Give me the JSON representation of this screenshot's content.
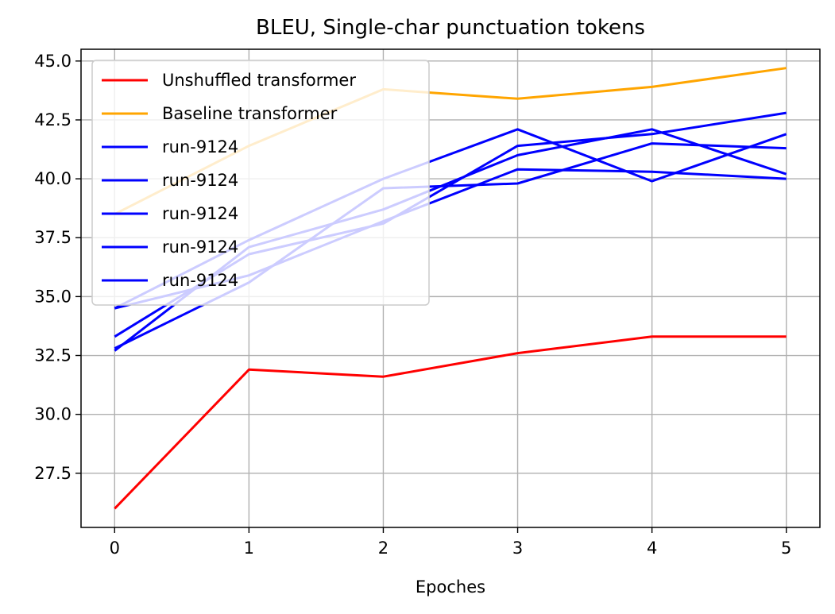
{
  "chart_data": {
    "type": "line",
    "title": "BLEU, Single-char punctuation tokens",
    "xlabel": "Epoches",
    "ylabel": "",
    "x": [
      0,
      1,
      2,
      3,
      4,
      5
    ],
    "xticks": [
      "0",
      "1",
      "2",
      "3",
      "4",
      "5"
    ],
    "yticks": [
      "27.5",
      "30.0",
      "32.5",
      "35.0",
      "37.5",
      "40.0",
      "42.5",
      "45.0"
    ],
    "xlim": [
      -0.25,
      5.25
    ],
    "ylim": [
      25.2,
      45.5
    ],
    "grid": true,
    "legend_position": "upper-left",
    "series": [
      {
        "name": "Unshuffled transformer",
        "color": "#ff0000",
        "values": [
          26.0,
          31.9,
          31.6,
          32.6,
          33.3,
          33.3
        ]
      },
      {
        "name": "Baseline transformer",
        "color": "#ffa500",
        "values": [
          38.5,
          41.4,
          43.8,
          43.4,
          43.9,
          44.7
        ]
      },
      {
        "name": "run-9124",
        "color": "#0000ff",
        "values": [
          34.5,
          37.4,
          40.0,
          42.1,
          39.9,
          41.9
        ]
      },
      {
        "name": "run-9124",
        "color": "#0000ff",
        "values": [
          33.3,
          36.8,
          38.1,
          41.4,
          41.9,
          42.8
        ]
      },
      {
        "name": "run-9124",
        "color": "#0000ff",
        "values": [
          32.8,
          35.6,
          39.6,
          39.8,
          41.5,
          41.3
        ]
      },
      {
        "name": "run-9124",
        "color": "#0000ff",
        "values": [
          34.5,
          35.9,
          38.2,
          40.4,
          40.3,
          40.0
        ]
      },
      {
        "name": "run-9124",
        "color": "#0000ff",
        "values": [
          32.7,
          37.1,
          38.7,
          41.0,
          42.1,
          40.2
        ]
      }
    ]
  }
}
